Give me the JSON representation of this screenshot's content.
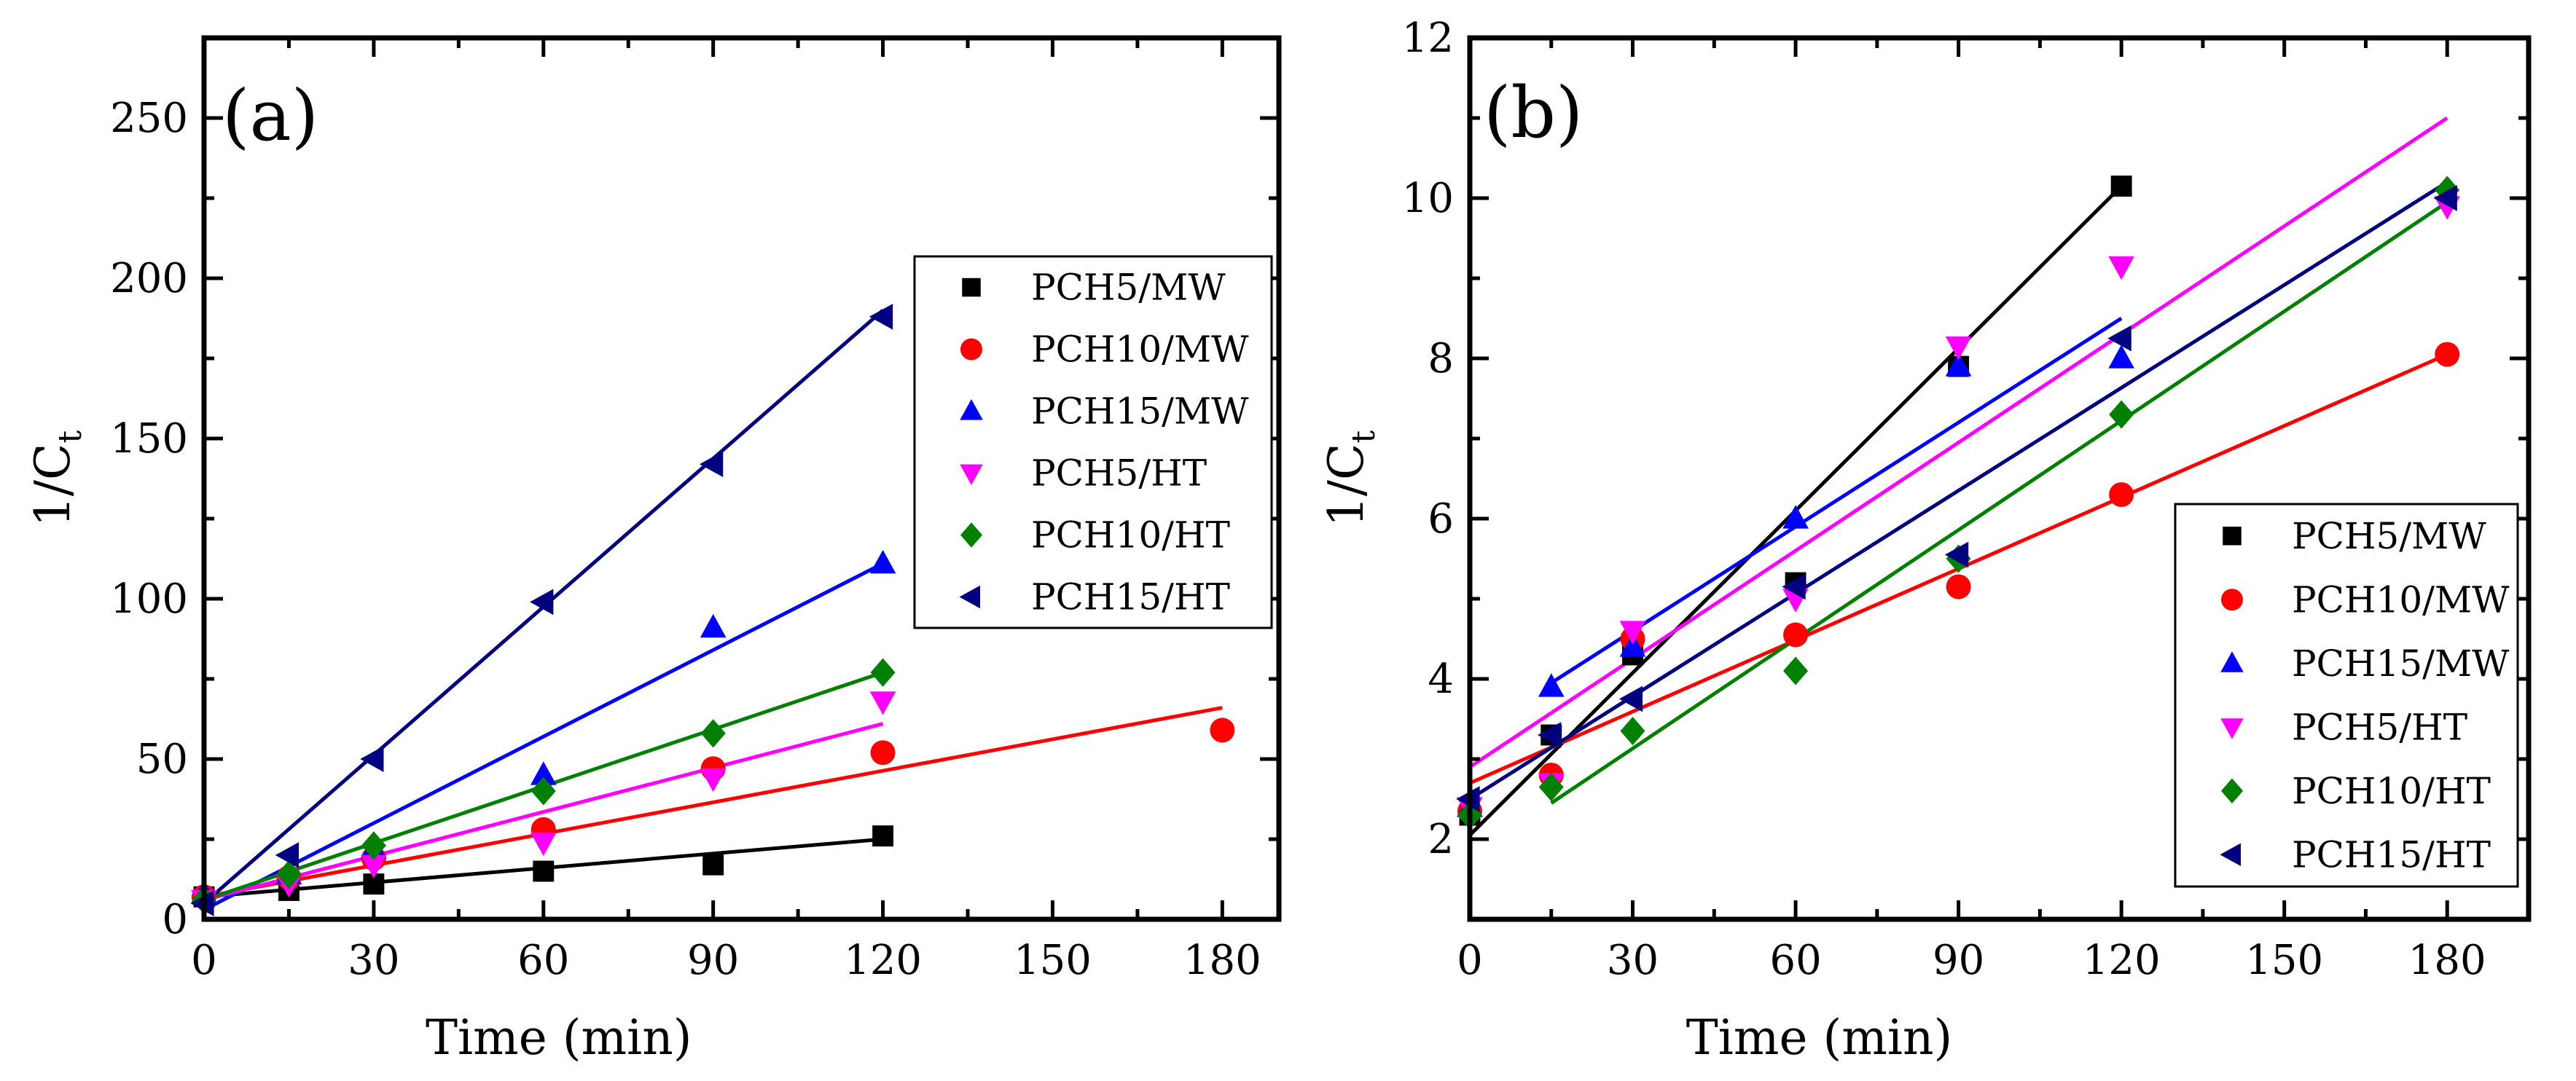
{
  "chart_data": [
    {
      "type": "scatter",
      "panel_label": "(a)",
      "xlabel": "Time (min)",
      "ylabel_main": "1/C",
      "ylabel_sub": "t",
      "xlim": [
        0,
        190
      ],
      "ylim": [
        0,
        275
      ],
      "xticks": [
        0,
        30,
        60,
        90,
        120,
        150,
        180
      ],
      "yticks": [
        0,
        50,
        100,
        150,
        200,
        250
      ],
      "legend_position": "middle-right",
      "series": [
        {
          "name": "PCH5/MW",
          "color": "#000000",
          "marker": "square",
          "points": [
            [
              0,
              7
            ],
            [
              15,
              9
            ],
            [
              30,
              11
            ],
            [
              60,
              15
            ],
            [
              90,
              17
            ],
            [
              120,
              26
            ]
          ],
          "fit": [
            [
              0,
              7
            ],
            [
              120,
              25
            ]
          ]
        },
        {
          "name": "PCH10/MW",
          "color": "#ff0000",
          "marker": "circle",
          "points": [
            [
              0,
              7
            ],
            [
              15,
              13
            ],
            [
              30,
              19
            ],
            [
              60,
              28
            ],
            [
              90,
              47
            ],
            [
              120,
              52
            ],
            [
              180,
              59
            ]
          ],
          "fit": [
            [
              0,
              7
            ],
            [
              180,
              66
            ]
          ]
        },
        {
          "name": "PCH15/MW",
          "color": "#0000ff",
          "marker": "triangle-up",
          "points": [
            [
              0,
              8
            ],
            [
              15,
              14
            ],
            [
              30,
              22
            ],
            [
              60,
              45
            ],
            [
              90,
              91
            ],
            [
              120,
              111
            ]
          ],
          "fit": [
            [
              0,
              3
            ],
            [
              120,
              111
            ]
          ]
        },
        {
          "name": "PCH5/HT",
          "color": "#ff00ff",
          "marker": "triangle-down",
          "points": [
            [
              0,
              6
            ],
            [
              15,
              11
            ],
            [
              30,
              17
            ],
            [
              60,
              24
            ],
            [
              90,
              44
            ],
            [
              120,
              68
            ]
          ],
          "fit": [
            [
              0,
              6
            ],
            [
              120,
              61
            ]
          ]
        },
        {
          "name": "PCH10/HT",
          "color": "#008000",
          "marker": "diamond",
          "points": [
            [
              0,
              6
            ],
            [
              15,
              14
            ],
            [
              30,
              23
            ],
            [
              60,
              40
            ],
            [
              90,
              58
            ],
            [
              120,
              77
            ]
          ],
          "fit": [
            [
              0,
              6
            ],
            [
              120,
              77
            ]
          ]
        },
        {
          "name": "PCH15/HT",
          "color": "#000080",
          "marker": "triangle-left",
          "points": [
            [
              0,
              5
            ],
            [
              15,
              20
            ],
            [
              30,
              50
            ],
            [
              60,
              99
            ],
            [
              90,
              142
            ],
            [
              120,
              188
            ]
          ],
          "fit": [
            [
              0,
              5
            ],
            [
              120,
              190
            ]
          ]
        }
      ]
    },
    {
      "type": "scatter",
      "panel_label": "(b)",
      "xlabel": "Time (min)",
      "ylabel_main": "1/C",
      "ylabel_sub": "t",
      "xlim": [
        0,
        195
      ],
      "ylim": [
        1,
        12
      ],
      "xticks": [
        0,
        30,
        60,
        90,
        120,
        150,
        180
      ],
      "yticks": [
        2,
        4,
        6,
        8,
        10,
        12
      ],
      "legend_position": "bottom-right",
      "series": [
        {
          "name": "PCH5/MW",
          "color": "#000000",
          "marker": "square",
          "points": [
            [
              0,
              2.3
            ],
            [
              15,
              3.3
            ],
            [
              30,
              4.3
            ],
            [
              60,
              5.2
            ],
            [
              90,
              7.9
            ],
            [
              120,
              10.15
            ]
          ],
          "fit": [
            [
              0,
              2.05
            ],
            [
              120,
              10.15
            ]
          ]
        },
        {
          "name": "PCH10/MW",
          "color": "#ff0000",
          "marker": "circle",
          "points": [
            [
              0,
              2.35
            ],
            [
              15,
              2.8
            ],
            [
              30,
              4.5
            ],
            [
              60,
              4.55
            ],
            [
              90,
              5.15
            ],
            [
              120,
              6.3
            ],
            [
              180,
              8.05
            ]
          ],
          "fit": [
            [
              0,
              2.7
            ],
            [
              180,
              8.05
            ]
          ]
        },
        {
          "name": "PCH15/MW",
          "color": "#0000ff",
          "marker": "triangle-up",
          "points": [
            [
              0,
              2.4
            ],
            [
              15,
              3.9
            ],
            [
              30,
              4.4
            ],
            [
              60,
              6.0
            ],
            [
              90,
              7.9
            ],
            [
              120,
              8.0
            ]
          ],
          "fit": [
            [
              15,
              3.95
            ],
            [
              120,
              8.5
            ]
          ]
        },
        {
          "name": "PCH5/HT",
          "color": "#ff00ff",
          "marker": "triangle-down",
          "points": [
            [
              0,
              2.4
            ],
            [
              15,
              2.7
            ],
            [
              30,
              4.6
            ],
            [
              60,
              5.0
            ],
            [
              90,
              8.15
            ],
            [
              120,
              9.15
            ],
            [
              180,
              9.9
            ]
          ],
          "fit": [
            [
              0,
              2.9
            ],
            [
              180,
              11.0
            ]
          ]
        },
        {
          "name": "PCH10/HT",
          "color": "#008000",
          "marker": "diamond",
          "points": [
            [
              0,
              2.3
            ],
            [
              15,
              2.65
            ],
            [
              30,
              3.35
            ],
            [
              60,
              4.1
            ],
            [
              90,
              5.5
            ],
            [
              120,
              7.3
            ],
            [
              180,
              10.1
            ]
          ],
          "fit": [
            [
              15,
              2.45
            ],
            [
              180,
              9.95
            ]
          ]
        },
        {
          "name": "PCH15/HT",
          "color": "#000080",
          "marker": "triangle-left",
          "points": [
            [
              0,
              2.5
            ],
            [
              15,
              3.3
            ],
            [
              30,
              3.75
            ],
            [
              60,
              5.15
            ],
            [
              90,
              5.55
            ],
            [
              120,
              8.25
            ],
            [
              180,
              10.0
            ]
          ],
          "fit": [
            [
              0,
              2.5
            ],
            [
              180,
              10.2
            ]
          ]
        }
      ]
    }
  ]
}
